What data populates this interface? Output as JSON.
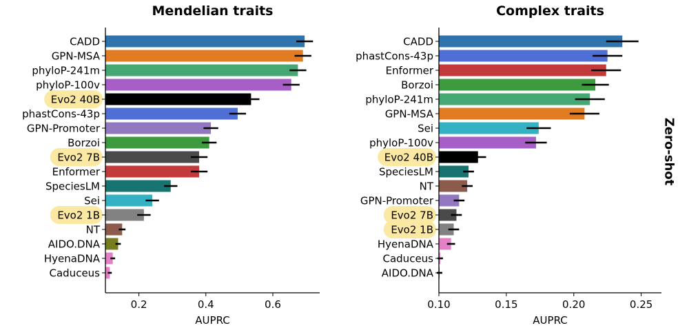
{
  "side_label": "Zero-shot",
  "chart_data": [
    {
      "type": "bar",
      "orientation": "horizontal",
      "title": "Mendelian traits",
      "xlabel": "AUPRC",
      "ylabel": "",
      "xlim": [
        0.1,
        0.74
      ],
      "xticks": [
        0.2,
        0.4,
        0.6
      ],
      "xtick_labels": [
        "0.2",
        "0.4",
        "0.6"
      ],
      "categories": [
        "CADD",
        "GPN-MSA",
        "phyloP-241m",
        "phyloP-100v",
        "Evo2 40B",
        "phastCons-43p",
        "GPN-Promoter",
        "Borzoi",
        "Evo2 7B",
        "Enformer",
        "SpeciesLM",
        "Sei",
        "Evo2 1B",
        "NT",
        "AIDO.DNA",
        "HyenaDNA",
        "Caduceus"
      ],
      "values": [
        0.695,
        0.69,
        0.675,
        0.655,
        0.535,
        0.495,
        0.415,
        0.41,
        0.38,
        0.38,
        0.295,
        0.24,
        0.215,
        0.15,
        0.138,
        0.122,
        0.113
      ],
      "errors": [
        0.025,
        0.025,
        0.025,
        0.025,
        0.025,
        0.025,
        0.022,
        0.022,
        0.025,
        0.025,
        0.02,
        0.02,
        0.02,
        0.01,
        0.008,
        0.007,
        0.006
      ],
      "colors": [
        "#2f74ad",
        "#e27c22",
        "#45a872",
        "#a75ec6",
        "#000000",
        "#4f6fd4",
        "#9278c0",
        "#3e9a3e",
        "#4a4a4a",
        "#c23b3a",
        "#17736f",
        "#35b1c4",
        "#828282",
        "#8d5b4c",
        "#777d1f",
        "#e380c6",
        "#e380c6"
      ],
      "highlighted": [
        "Evo2 40B",
        "Evo2 7B",
        "Evo2 1B"
      ]
    },
    {
      "type": "bar",
      "orientation": "horizontal",
      "title": "Complex traits",
      "xlabel": "AUPRC",
      "ylabel": "",
      "xlim": [
        0.1,
        0.265
      ],
      "xticks": [
        0.1,
        0.15,
        0.2,
        0.25
      ],
      "xtick_labels": [
        "0.10",
        "0.15",
        "0.20",
        "0.25"
      ],
      "categories": [
        "CADD",
        "phastCons-43p",
        "Enformer",
        "Borzoi",
        "phyloP-241m",
        "GPN-MSA",
        "Sei",
        "phyloP-100v",
        "Evo2 40B",
        "SpeciesLM",
        "NT",
        "GPN-Promoter",
        "Evo2 7B",
        "Evo2 1B",
        "HyenaDNA",
        "Caduceus",
        "AIDO.DNA"
      ],
      "values": [
        0.236,
        0.225,
        0.224,
        0.216,
        0.212,
        0.208,
        0.174,
        0.172,
        0.129,
        0.122,
        0.121,
        0.115,
        0.113,
        0.111,
        0.109,
        0.101,
        0.1005
      ],
      "errors": [
        0.012,
        0.011,
        0.011,
        0.01,
        0.011,
        0.011,
        0.009,
        0.008,
        0.006,
        0.004,
        0.004,
        0.004,
        0.004,
        0.004,
        0.003,
        0.002,
        0.002
      ],
      "colors": [
        "#2f74ad",
        "#4f6fd4",
        "#c23b3a",
        "#3e9a3e",
        "#45a872",
        "#e27c22",
        "#35b1c4",
        "#a75ec6",
        "#000000",
        "#17736f",
        "#8d5b4c",
        "#9278c0",
        "#4a4a4a",
        "#828282",
        "#e380c6",
        "#e380c6",
        "#777d1f"
      ],
      "highlighted": [
        "Evo2 40B",
        "Evo2 7B",
        "Evo2 1B"
      ]
    }
  ]
}
